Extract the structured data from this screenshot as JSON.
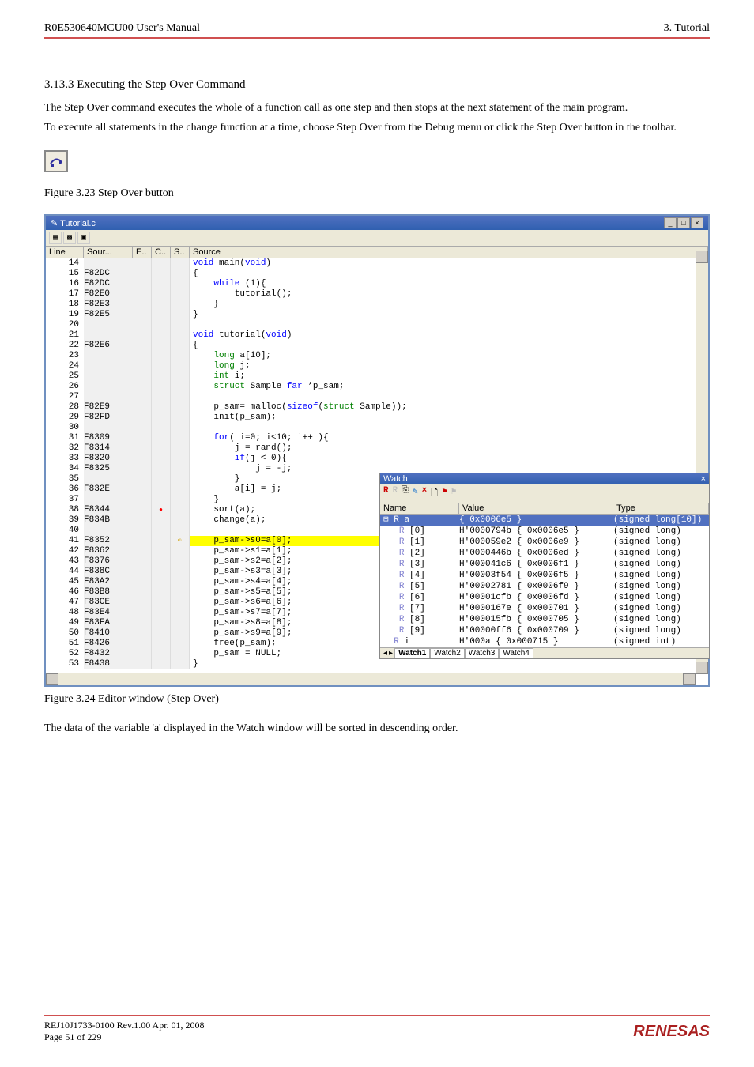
{
  "header": {
    "left": "R0E530640MCU00 User's Manual",
    "right": "3. Tutorial"
  },
  "section": {
    "title": "3.13.3 Executing the Step Over Command",
    "p1": "The Step Over command executes the whole of a function call as one step and then stops at the next statement of the main program.",
    "p2": "To execute all statements in the change function at a time, choose Step Over from the Debug menu or click the Step Over button in the toolbar.",
    "fig1": "Figure 3.23 Step Over button",
    "fig2": "Figure 3.24 Editor window (Step Over)",
    "p3": "The data of the variable 'a' displayed in the Watch window will be sorted in descending order."
  },
  "editor": {
    "title": "Tutorial.c",
    "cols": {
      "line": "Line",
      "sour": "Sour...",
      "e": "E..",
      "c": "C..",
      "s": "S..",
      "source": "Source"
    },
    "rows": [
      {
        "ln": "14",
        "addr": "",
        "src": [
          [
            "b",
            "void"
          ],
          [
            "n",
            " main("
          ],
          [
            "b",
            "void"
          ],
          [
            "n",
            ")"
          ]
        ]
      },
      {
        "ln": "15",
        "addr": "F82DC",
        "src": [
          [
            "n",
            "{"
          ]
        ]
      },
      {
        "ln": "16",
        "addr": "F82DC",
        "src": [
          [
            "n",
            "    "
          ],
          [
            "b",
            "while"
          ],
          [
            "n",
            " (1){"
          ]
        ]
      },
      {
        "ln": "17",
        "addr": "F82E0",
        "src": [
          [
            "n",
            "        tutorial();"
          ]
        ]
      },
      {
        "ln": "18",
        "addr": "F82E3",
        "src": [
          [
            "n",
            "    }"
          ]
        ]
      },
      {
        "ln": "19",
        "addr": "F82E5",
        "src": [
          [
            "n",
            "}"
          ]
        ]
      },
      {
        "ln": "20",
        "addr": "",
        "src": [
          [
            "n",
            ""
          ]
        ]
      },
      {
        "ln": "21",
        "addr": "",
        "src": [
          [
            "b",
            "void"
          ],
          [
            "n",
            " tutorial("
          ],
          [
            "b",
            "void"
          ],
          [
            "n",
            ")"
          ]
        ]
      },
      {
        "ln": "22",
        "addr": "F82E6",
        "src": [
          [
            "n",
            "{"
          ]
        ]
      },
      {
        "ln": "23",
        "addr": "",
        "src": [
          [
            "n",
            "    "
          ],
          [
            "g",
            "long"
          ],
          [
            "n",
            " a[10];"
          ]
        ]
      },
      {
        "ln": "24",
        "addr": "",
        "src": [
          [
            "n",
            "    "
          ],
          [
            "g",
            "long"
          ],
          [
            "n",
            " j;"
          ]
        ]
      },
      {
        "ln": "25",
        "addr": "",
        "src": [
          [
            "n",
            "    "
          ],
          [
            "g",
            "int"
          ],
          [
            "n",
            " i;"
          ]
        ]
      },
      {
        "ln": "26",
        "addr": "",
        "src": [
          [
            "n",
            "    "
          ],
          [
            "g",
            "struct"
          ],
          [
            "n",
            " Sample "
          ],
          [
            "b",
            "far"
          ],
          [
            "n",
            " *p_sam;"
          ]
        ]
      },
      {
        "ln": "27",
        "addr": "",
        "src": [
          [
            "n",
            ""
          ]
        ]
      },
      {
        "ln": "28",
        "addr": "F82E9",
        "src": [
          [
            "n",
            "    p_sam= malloc("
          ],
          [
            "b",
            "sizeof"
          ],
          [
            "n",
            "("
          ],
          [
            "g",
            "struct"
          ],
          [
            "n",
            " Sample));"
          ]
        ]
      },
      {
        "ln": "29",
        "addr": "F82FD",
        "src": [
          [
            "n",
            "    init(p_sam);"
          ]
        ]
      },
      {
        "ln": "30",
        "addr": "",
        "src": [
          [
            "n",
            ""
          ]
        ]
      },
      {
        "ln": "31",
        "addr": "F8309",
        "src": [
          [
            "n",
            "    "
          ],
          [
            "b",
            "for"
          ],
          [
            "n",
            "( i=0; i<10; i++ ){"
          ]
        ]
      },
      {
        "ln": "32",
        "addr": "F8314",
        "src": [
          [
            "n",
            "        j = rand();"
          ]
        ]
      },
      {
        "ln": "33",
        "addr": "F8320",
        "src": [
          [
            "n",
            "        "
          ],
          [
            "b",
            "if"
          ],
          [
            "n",
            "(j < 0){"
          ]
        ]
      },
      {
        "ln": "34",
        "addr": "F8325",
        "src": [
          [
            "n",
            "            j = -j;"
          ]
        ]
      },
      {
        "ln": "35",
        "addr": "",
        "src": [
          [
            "n",
            "        }"
          ]
        ]
      },
      {
        "ln": "36",
        "addr": "F832E",
        "src": [
          [
            "n",
            "        a[i] = j;"
          ]
        ]
      },
      {
        "ln": "37",
        "addr": "",
        "src": [
          [
            "n",
            "    }"
          ]
        ]
      },
      {
        "ln": "38",
        "addr": "F8344",
        "bp": true,
        "src": [
          [
            "n",
            "    sort(a);"
          ]
        ]
      },
      {
        "ln": "39",
        "addr": "F834B",
        "src": [
          [
            "n",
            "    change(a);"
          ]
        ]
      },
      {
        "ln": "40",
        "addr": "",
        "src": [
          [
            "n",
            ""
          ]
        ]
      },
      {
        "ln": "41",
        "addr": "F8352",
        "arrow": true,
        "hl": true,
        "src": [
          [
            "n",
            "    p_sam->s0=a[0];"
          ]
        ]
      },
      {
        "ln": "42",
        "addr": "F8362",
        "src": [
          [
            "n",
            "    p_sam->s1=a[1];"
          ]
        ]
      },
      {
        "ln": "43",
        "addr": "F8376",
        "src": [
          [
            "n",
            "    p_sam->s2=a[2];"
          ]
        ]
      },
      {
        "ln": "44",
        "addr": "F838C",
        "src": [
          [
            "n",
            "    p_sam->s3=a[3];"
          ]
        ]
      },
      {
        "ln": "45",
        "addr": "F83A2",
        "src": [
          [
            "n",
            "    p_sam->s4=a[4];"
          ]
        ]
      },
      {
        "ln": "46",
        "addr": "F83B8",
        "src": [
          [
            "n",
            "    p_sam->s5=a[5];"
          ]
        ]
      },
      {
        "ln": "47",
        "addr": "F83CE",
        "src": [
          [
            "n",
            "    p_sam->s6=a[6];"
          ]
        ]
      },
      {
        "ln": "48",
        "addr": "F83E4",
        "src": [
          [
            "n",
            "    p_sam->s7=a[7];"
          ]
        ]
      },
      {
        "ln": "49",
        "addr": "F83FA",
        "src": [
          [
            "n",
            "    p_sam->s8=a[8];"
          ]
        ]
      },
      {
        "ln": "50",
        "addr": "F8410",
        "src": [
          [
            "n",
            "    p_sam->s9=a[9];"
          ]
        ]
      },
      {
        "ln": "51",
        "addr": "F8426",
        "src": [
          [
            "n",
            "    free(p_sam);"
          ]
        ]
      },
      {
        "ln": "52",
        "addr": "F8432",
        "src": [
          [
            "n",
            "    p_sam = NULL;"
          ]
        ]
      },
      {
        "ln": "53",
        "addr": "F8438",
        "src": [
          [
            "n",
            "}"
          ]
        ]
      }
    ]
  },
  "watch": {
    "title": "Watch",
    "hdr": {
      "name": "Name",
      "value": "Value",
      "type": "Type"
    },
    "rows": [
      {
        "sel": true,
        "n": "⊟ R a",
        "v": "{ 0x0006e5 }",
        "t": "(signed long[10])"
      },
      {
        "n": "   R [0]",
        "v": "H'0000794b { 0x0006e5 }",
        "t": "(signed long)"
      },
      {
        "n": "   R [1]",
        "v": "H'000059e2 { 0x0006e9 }",
        "t": "(signed long)"
      },
      {
        "n": "   R [2]",
        "v": "H'0000446b { 0x0006ed }",
        "t": "(signed long)"
      },
      {
        "n": "   R [3]",
        "v": "H'000041c6 { 0x0006f1 }",
        "t": "(signed long)"
      },
      {
        "n": "   R [4]",
        "v": "H'00003f54 { 0x0006f5 }",
        "t": "(signed long)"
      },
      {
        "n": "   R [5]",
        "v": "H'00002781 { 0x0006f9 }",
        "t": "(signed long)"
      },
      {
        "n": "   R [6]",
        "v": "H'00001cfb { 0x0006fd }",
        "t": "(signed long)"
      },
      {
        "n": "   R [7]",
        "v": "H'0000167e { 0x000701 }",
        "t": "(signed long)"
      },
      {
        "n": "   R [8]",
        "v": "H'000015fb { 0x000705 }",
        "t": "(signed long)"
      },
      {
        "n": "   R [9]",
        "v": "H'00000ff6 { 0x000709 }",
        "t": "(signed long)"
      },
      {
        "n": "  R i",
        "v": "H'000a { 0x000715 }",
        "t": "(signed int)"
      }
    ],
    "tabs": [
      "Watch1",
      "Watch2",
      "Watch3",
      "Watch4"
    ]
  },
  "footer": {
    "l1": "REJ10J1733-0100  Rev.1.00  Apr. 01, 2008",
    "l2": "Page 51 of 229",
    "logo": "RENESAS"
  }
}
